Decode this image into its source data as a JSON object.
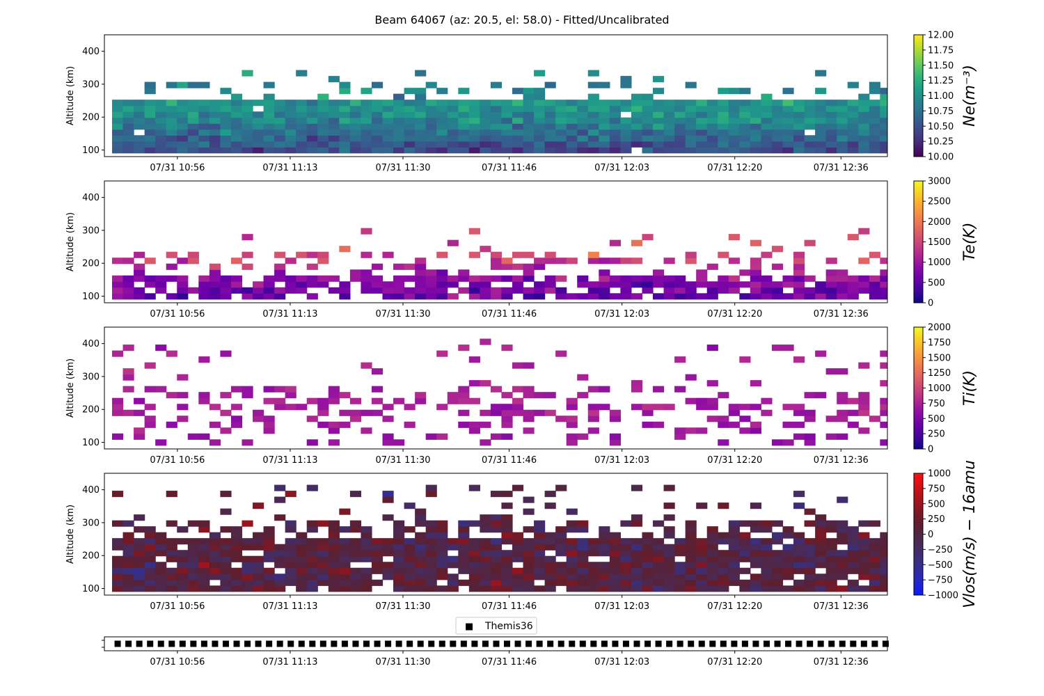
{
  "title": "Beam 64067 (az: 20.5, el: 58.0) - Fitted/Uncalibrated",
  "legend": {
    "marker": "■",
    "label": "Themis36"
  },
  "time_axis": {
    "range": [
      "10:45",
      "12:43"
    ],
    "tick_times": [
      "10:56",
      "11:13",
      "11:30",
      "11:46",
      "12:03",
      "12:20",
      "12:36"
    ],
    "tick_labels": [
      "07/31 10:56",
      "07/31 11:13",
      "07/31 11:30",
      "07/31 11:46",
      "07/31 12:03",
      "07/31 12:20",
      "07/31 12:36"
    ],
    "bin_minutes": 1.63,
    "start_time": "10:47"
  },
  "alt_axis": {
    "label": "Altitude (km)",
    "range": [
      80,
      450
    ],
    "ticks": [
      100,
      200,
      300,
      400
    ],
    "bin_km": 18
  },
  "chart_data": [
    {
      "type": "heatmap",
      "id": "ne",
      "cbar_label": "Ne(m⁻³)",
      "colormap": "viridis",
      "clim": [
        10.0,
        12.0
      ],
      "cbar_ticks": [
        "10.00",
        "10.25",
        "10.50",
        "10.75",
        "11.00",
        "11.25",
        "11.50",
        "11.75",
        "12.00"
      ],
      "coverage": [
        {
          "alt": [
            100,
            260
          ],
          "fill": 0.99
        },
        {
          "alt": [
            260,
            300
          ],
          "fill": 0.22
        },
        {
          "alt": [
            300,
            340
          ],
          "fill": 0.06
        }
      ],
      "value_profile": [
        [
          100,
          10.45
        ],
        [
          150,
          10.7
        ],
        [
          200,
          10.95
        ],
        [
          240,
          11.05
        ],
        [
          300,
          10.85
        ],
        [
          340,
          10.9
        ]
      ],
      "noise": 0.25
    },
    {
      "type": "heatmap",
      "id": "te",
      "cbar_label": "Te(K)",
      "colormap": "plasma",
      "clim": [
        0,
        3000
      ],
      "cbar_ticks": [
        "0",
        "500",
        "1000",
        "1500",
        "2000",
        "2500",
        "3000"
      ],
      "coverage": [
        {
          "alt": [
            100,
            160
          ],
          "fill": 0.8
        },
        {
          "alt": [
            160,
            230
          ],
          "fill": 0.28
        },
        {
          "alt": [
            230,
            310
          ],
          "fill": 0.07
        }
      ],
      "value_profile": [
        [
          100,
          650
        ],
        [
          150,
          800
        ],
        [
          190,
          1200
        ],
        [
          240,
          1600
        ],
        [
          300,
          1550
        ]
      ],
      "noise": 380
    },
    {
      "type": "heatmap",
      "id": "ti",
      "cbar_label": "Ti(K)",
      "colormap": "plasma",
      "clim": [
        0,
        2000
      ],
      "cbar_ticks": [
        "0",
        "250",
        "500",
        "750",
        "1000",
        "1250",
        "1500",
        "1750",
        "2000"
      ],
      "coverage": [
        {
          "alt": [
            100,
            140
          ],
          "fill": 0.2
        },
        {
          "alt": [
            140,
            270
          ],
          "fill": 0.32
        },
        {
          "alt": [
            270,
            410
          ],
          "fill": 0.05
        }
      ],
      "value_profile": [
        [
          100,
          640
        ],
        [
          200,
          720
        ],
        [
          300,
          760
        ],
        [
          400,
          720
        ]
      ],
      "noise": 120
    },
    {
      "type": "heatmap",
      "id": "vlos",
      "cbar_label": "Vlos(m/s) − 16amu",
      "colormap": "bwr-dark",
      "clim": [
        -1000,
        1000
      ],
      "cbar_ticks": [
        "−1000",
        "−750",
        "−500",
        "−250",
        "0",
        "250",
        "500",
        "750",
        "1000"
      ],
      "coverage": [
        {
          "alt": [
            100,
            260
          ],
          "fill": 0.93
        },
        {
          "alt": [
            260,
            310
          ],
          "fill": 0.55
        },
        {
          "alt": [
            310,
            410
          ],
          "fill": 0.1
        }
      ],
      "value_profile": [
        [
          100,
          0
        ],
        [
          300,
          0
        ]
      ],
      "noise": 320
    }
  ],
  "status_strip": {
    "label": "Themis36",
    "samples": 73
  }
}
